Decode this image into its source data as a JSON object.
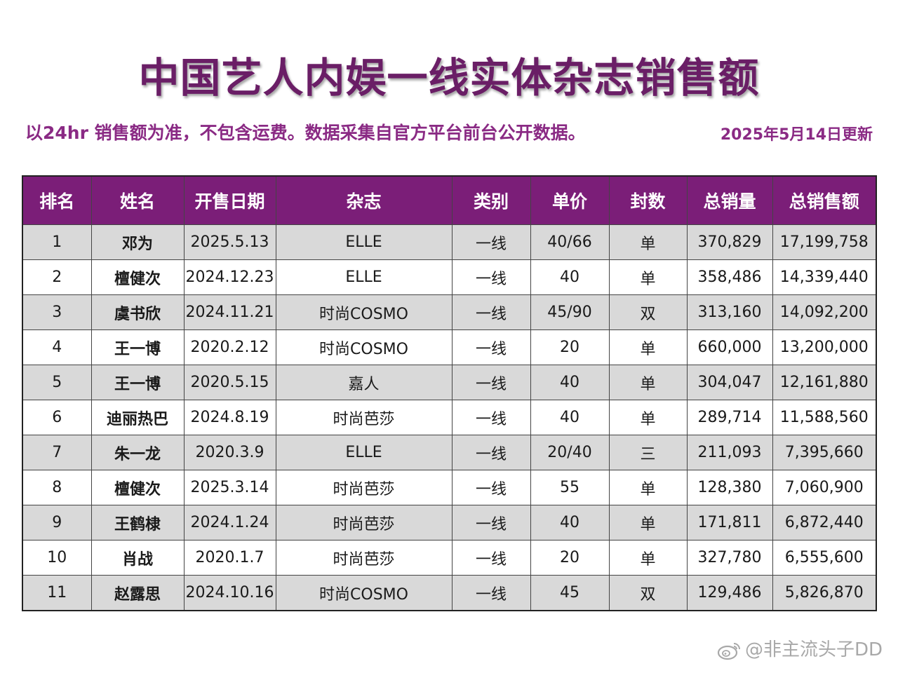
{
  "title": "中国艺人内娱一线实体杂志销售额",
  "subtitle": "以24hr 销售额为准，不包含运费。数据采集自官方平台前台公开数据。",
  "updated": "2025年5月14日更新",
  "table": {
    "headers": [
      "排名",
      "姓名",
      "开售日期",
      "杂志",
      "类别",
      "单价",
      "封数",
      "总销量",
      "总销售额"
    ],
    "rows": [
      [
        "1",
        "邓为",
        "2025.5.13",
        "ELLE",
        "一线",
        "40/66",
        "单",
        "370,829",
        "17,199,758"
      ],
      [
        "2",
        "檀健次",
        "2024.12.23",
        "ELLE",
        "一线",
        "40",
        "单",
        "358,486",
        "14,339,440"
      ],
      [
        "3",
        "虞书欣",
        "2024.11.21",
        "时尚COSMO",
        "一线",
        "45/90",
        "双",
        "313,160",
        "14,092,200"
      ],
      [
        "4",
        "王一博",
        "2020.2.12",
        "时尚COSMO",
        "一线",
        "20",
        "单",
        "660,000",
        "13,200,000"
      ],
      [
        "5",
        "王一博",
        "2020.5.15",
        "嘉人",
        "一线",
        "40",
        "单",
        "304,047",
        "12,161,880"
      ],
      [
        "6",
        "迪丽热巴",
        "2024.8.19",
        "时尚芭莎",
        "一线",
        "40",
        "单",
        "289,714",
        "11,588,560"
      ],
      [
        "7",
        "朱一龙",
        "2020.3.9",
        "ELLE",
        "一线",
        "20/40",
        "三",
        "211,093",
        "7,395,660"
      ],
      [
        "8",
        "檀健次",
        "2025.3.14",
        "时尚芭莎",
        "一线",
        "55",
        "单",
        "128,380",
        "7,060,900"
      ],
      [
        "9",
        "王鹤棣",
        "2024.1.24",
        "时尚芭莎",
        "一线",
        "40",
        "单",
        "171,811",
        "6,872,440"
      ],
      [
        "10",
        "肖战",
        "2020.1.7",
        "时尚芭莎",
        "一线",
        "20",
        "单",
        "327,780",
        "6,555,600"
      ],
      [
        "11",
        "赵露思",
        "2024.10.16",
        "时尚COSMO",
        "一线",
        "45",
        "双",
        "129,486",
        "5,826,870"
      ]
    ]
  },
  "watermark": "@非主流头子DD",
  "watermark_icon": "weibo-icon",
  "colors": {
    "title": "#6a1e66",
    "subtitle": "#8a2a84",
    "header_bg": "#7b1e78",
    "row_alt_bg": "#d9d9d9"
  }
}
